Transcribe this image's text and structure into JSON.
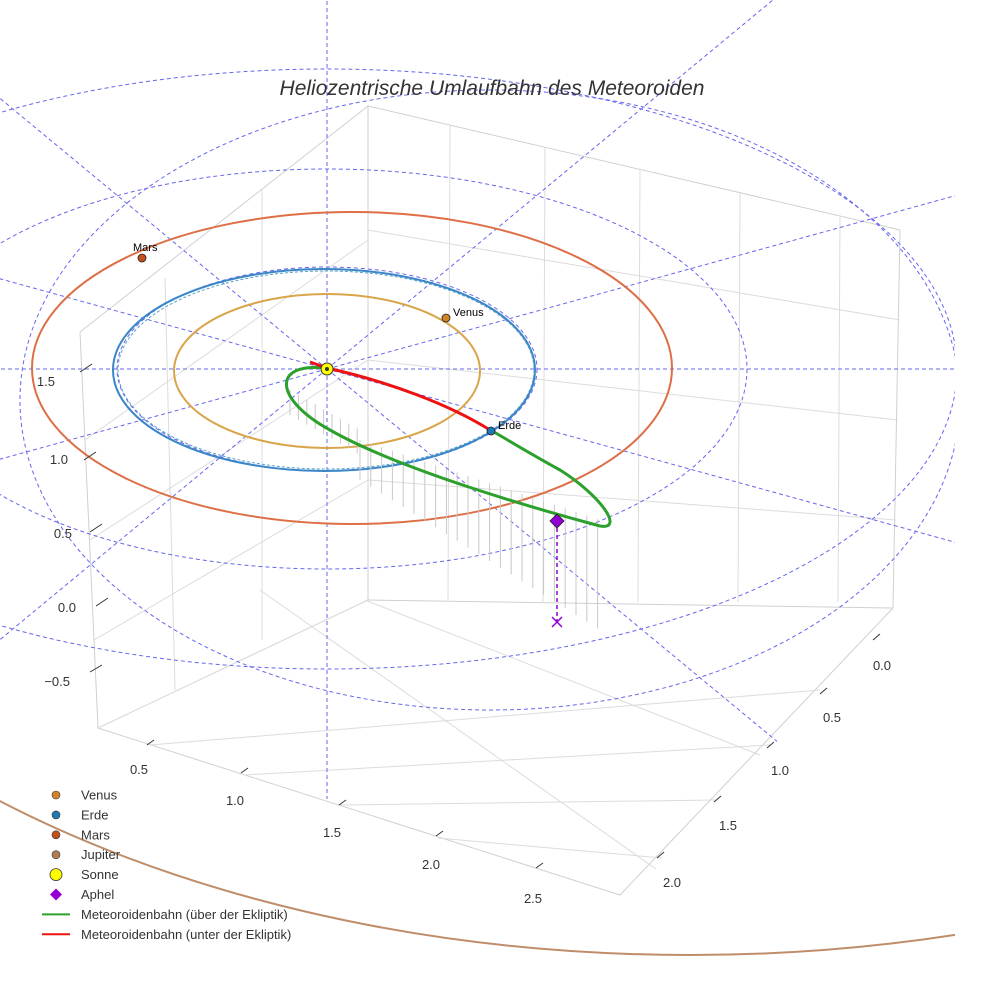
{
  "chart_data": {
    "type": "scatter3d",
    "title": "Heliozentrische Umlaufbahn des Meteoroiden",
    "axes": {
      "z_ticks": [
        "−0.5",
        "0.0",
        "0.5",
        "1.0",
        "1.5"
      ],
      "x_ticks": [
        "0.5",
        "1.0",
        "1.5",
        "2.0",
        "2.5"
      ],
      "y_ticks": [
        "0.0",
        "0.5",
        "1.0",
        "1.5",
        "2.0"
      ]
    },
    "planets": [
      {
        "name": "Venus",
        "label": "Venus",
        "color": "#d2842a",
        "orbit_color": "#d9a54a",
        "orbit_radius_au": 0.72
      },
      {
        "name": "Erde",
        "label": "Erde",
        "color": "#1f77b4",
        "orbit_color": "#3a86c8",
        "orbit_radius_au": 1.0
      },
      {
        "name": "Mars",
        "label": "Mars",
        "color": "#c4501c",
        "orbit_color": "#dd6f47",
        "orbit_radius_au": 1.52
      },
      {
        "name": "Jupiter",
        "label": "",
        "color": "#b07d50",
        "orbit_color": "#bf8d6a",
        "orbit_radius_au": 5.2
      }
    ],
    "sun": {
      "name": "Sonne",
      "label": "☉",
      "color": "#ffff00"
    },
    "aphel": {
      "name": "Aphel",
      "color": "#9400d3",
      "marker": "diamond"
    },
    "meteoroid_orbit": [
      {
        "name": "Meteoroidenbahn (über der Ekliptik)",
        "color": "#2ca02c"
      },
      {
        "name": "Meteoroidenbahn (unter der Ekliptik)",
        "color": "#ee1111"
      }
    ],
    "ecliptic_grid": {
      "color": "#6666ee",
      "style": "dashed"
    }
  },
  "legend": [
    {
      "label": "Venus",
      "symbol": "dot",
      "color": "#d2842a"
    },
    {
      "label": "Erde",
      "symbol": "dot",
      "color": "#1f77b4"
    },
    {
      "label": "Mars",
      "symbol": "dot",
      "color": "#c4501c"
    },
    {
      "label": "Jupiter",
      "symbol": "dot",
      "color": "#b07d50"
    },
    {
      "label": "Sonne",
      "symbol": "sun",
      "color": "#ffff00"
    },
    {
      "label": "Aphel",
      "symbol": "diamond",
      "color": "#9400d3"
    },
    {
      "label": "Meteoroidenbahn (über der Ekliptik)",
      "symbol": "line",
      "color": "#2ca02c"
    },
    {
      "label": "Meteoroidenbahn (unter der Ekliptik)",
      "symbol": "line",
      "color": "#ee1111"
    }
  ]
}
